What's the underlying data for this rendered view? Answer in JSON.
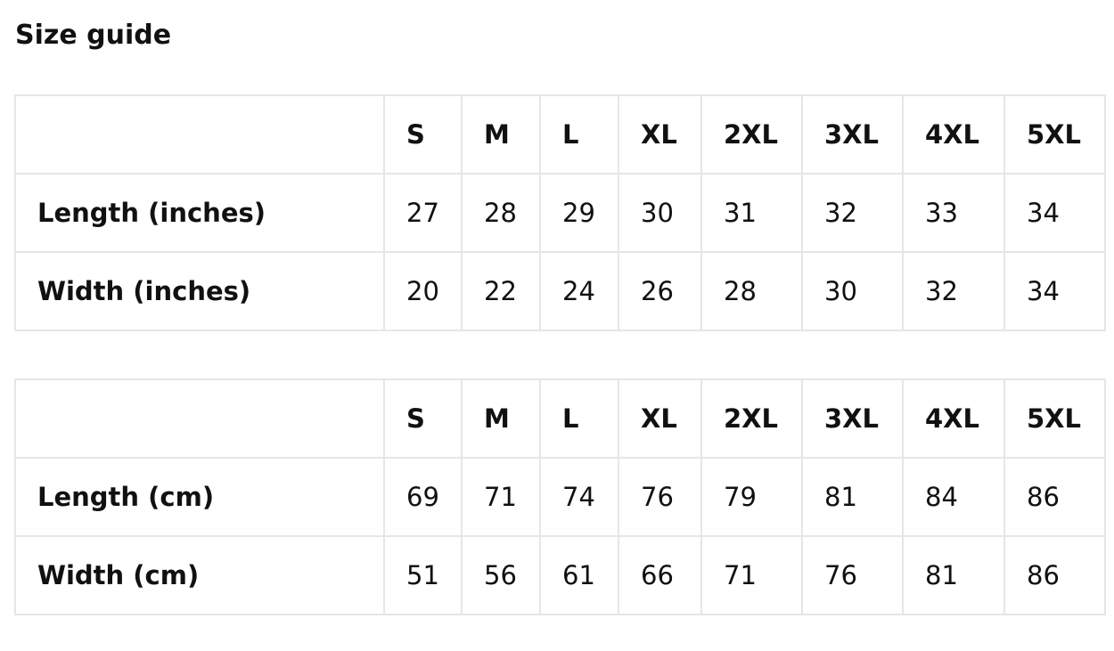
{
  "title": "Size guide",
  "sizes": [
    "S",
    "M",
    "L",
    "XL",
    "2XL",
    "3XL",
    "4XL",
    "5XL"
  ],
  "tables": [
    {
      "rows": [
        {
          "label": "Length (inches)",
          "values": [
            "27",
            "28",
            "29",
            "30",
            "31",
            "32",
            "33",
            "34"
          ]
        },
        {
          "label": "Width (inches)",
          "values": [
            "20",
            "22",
            "24",
            "26",
            "28",
            "30",
            "32",
            "34"
          ]
        }
      ]
    },
    {
      "rows": [
        {
          "label": "Length (cm)",
          "values": [
            "69",
            "71",
            "74",
            "76",
            "79",
            "81",
            "84",
            "86"
          ]
        },
        {
          "label": "Width (cm)",
          "values": [
            "51",
            "56",
            "61",
            "66",
            "71",
            "76",
            "81",
            "86"
          ]
        }
      ]
    }
  ]
}
